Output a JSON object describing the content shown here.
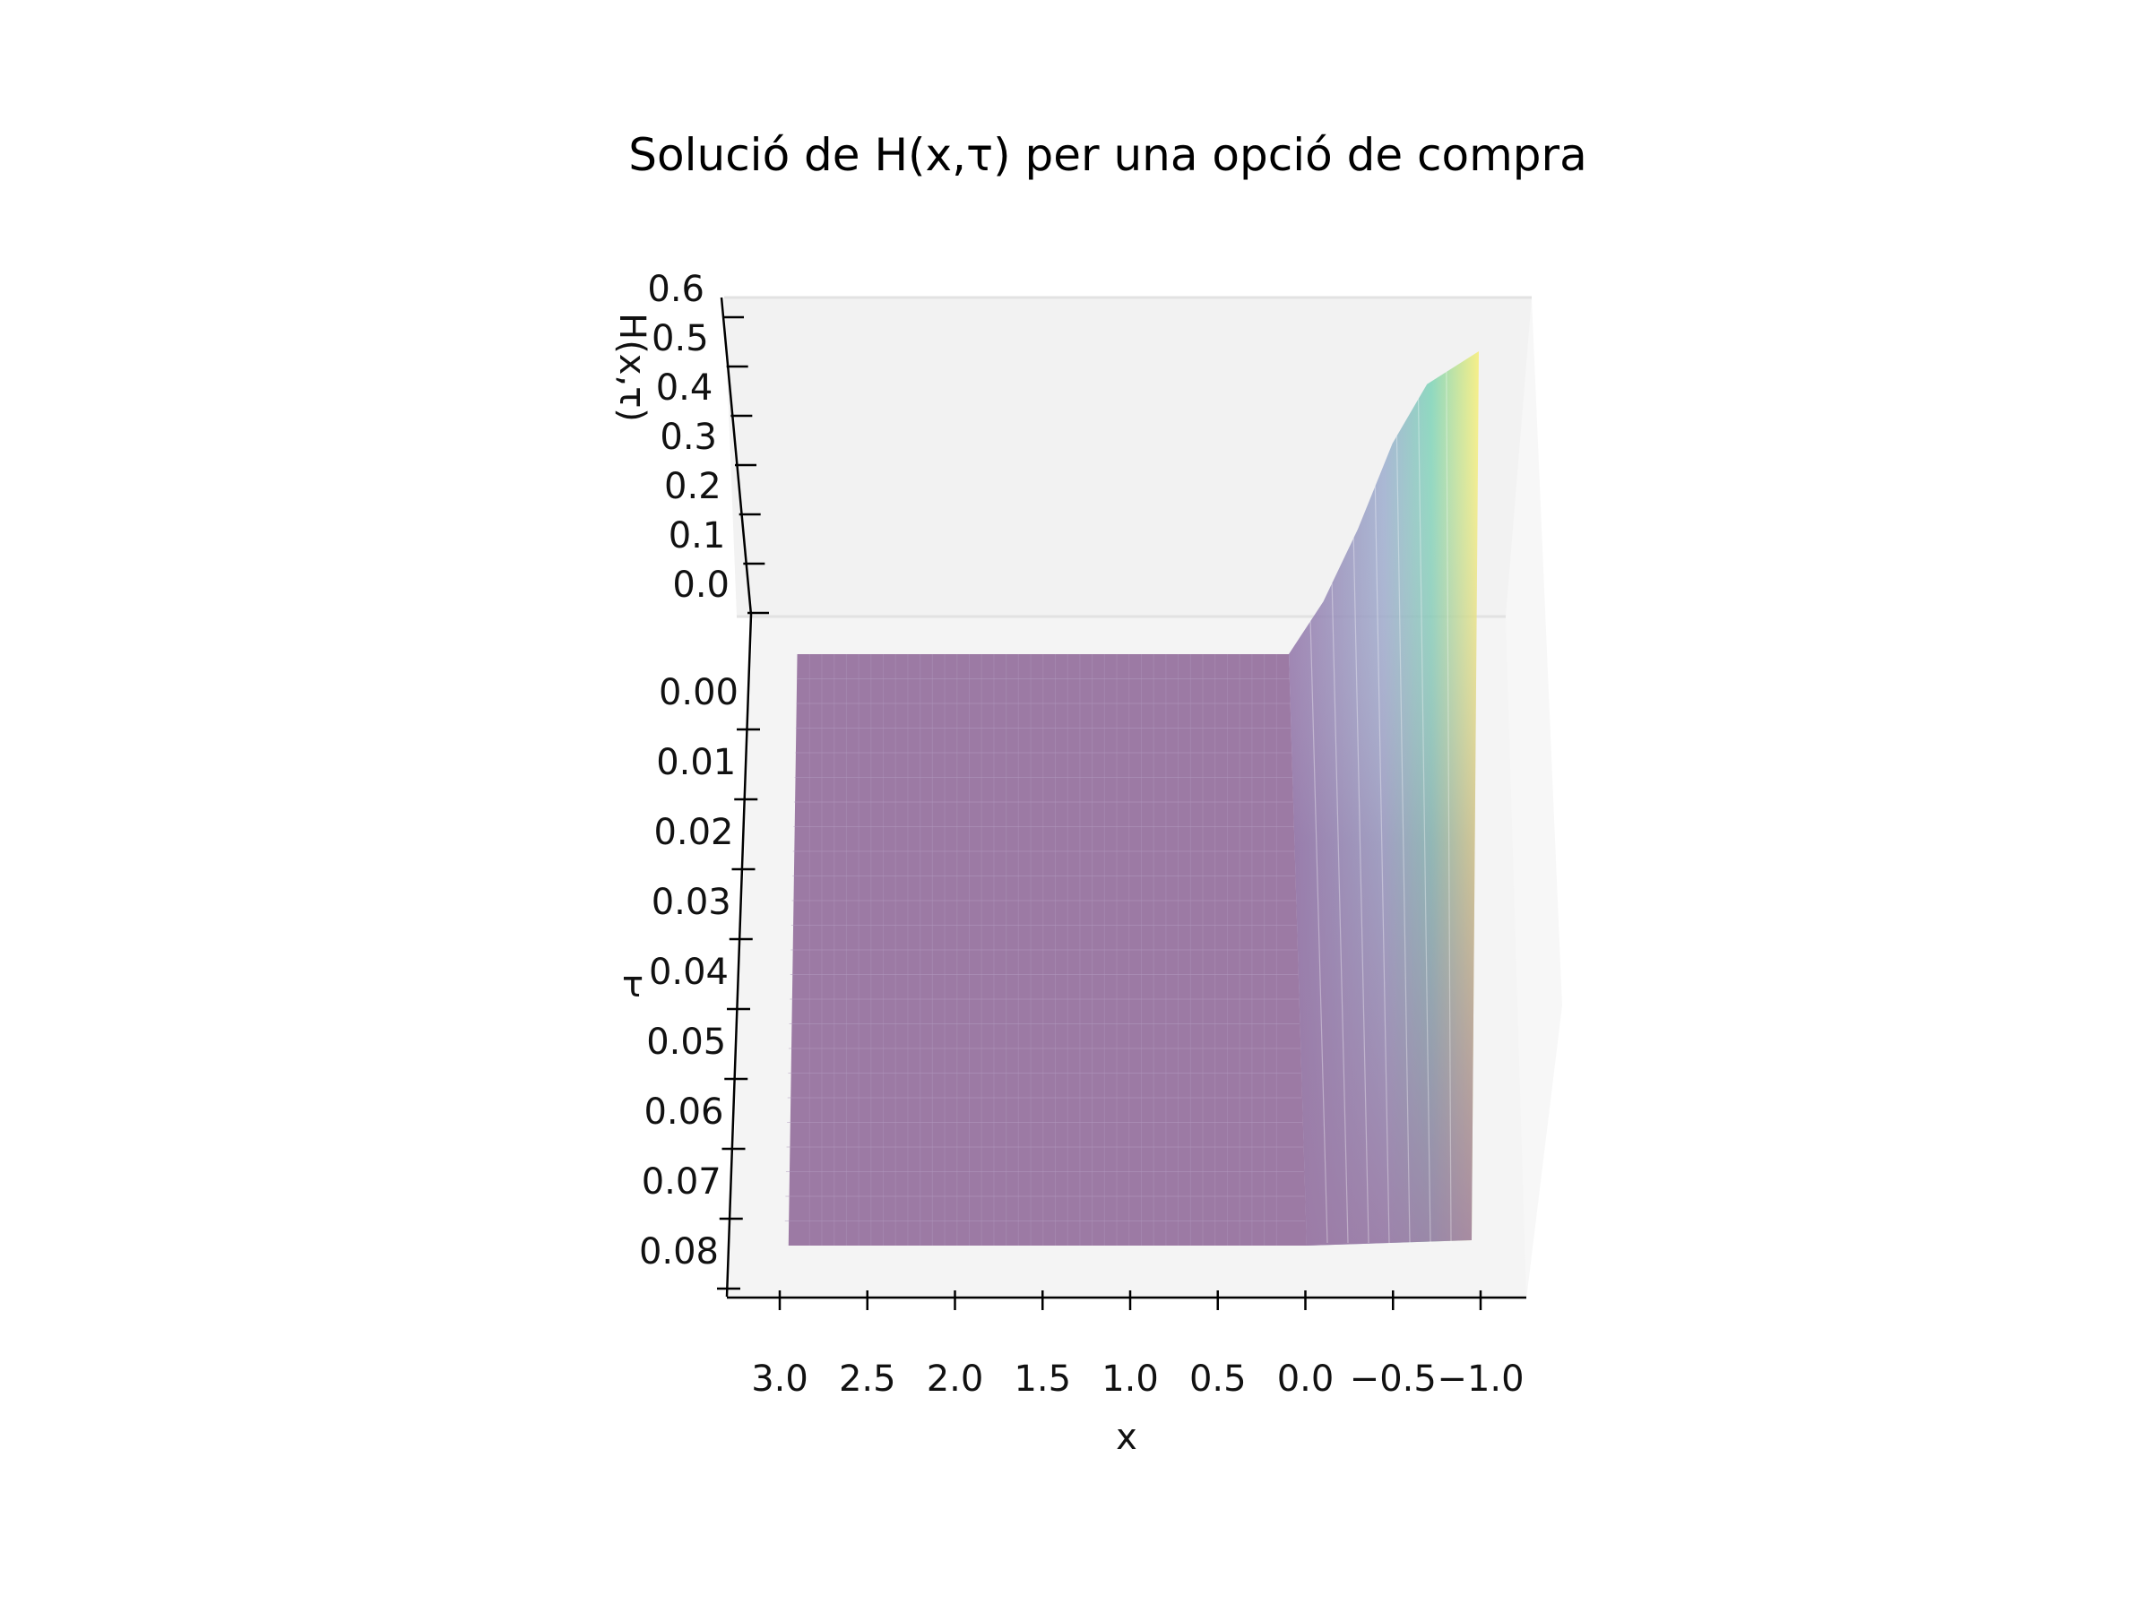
{
  "chart_data": {
    "type": "surface",
    "title": "Solució de H(x,τ) per una opció de compra",
    "xlabel": "x",
    "ylabel": "τ",
    "zlabel": "H(x,τ)",
    "x_ticks": [
      "3.0",
      "2.5",
      "2.0",
      "1.5",
      "1.0",
      "0.5",
      "0.0",
      "−0.5",
      "−1.0"
    ],
    "x_tick_values": [
      3.0,
      2.5,
      2.0,
      1.5,
      1.0,
      0.5,
      0.0,
      -0.5,
      -1.0
    ],
    "tau_ticks": [
      "0.00",
      "0.01",
      "0.02",
      "0.03",
      "0.04",
      "0.05",
      "0.06",
      "0.07",
      "0.08"
    ],
    "tau_tick_values": [
      0.0,
      0.01,
      0.02,
      0.03,
      0.04,
      0.05,
      0.06,
      0.07,
      0.08
    ],
    "z_ticks": [
      "0.0",
      "0.1",
      "0.2",
      "0.3",
      "0.4",
      "0.5",
      "0.6"
    ],
    "z_tick_values": [
      0.0,
      0.1,
      0.2,
      0.3,
      0.4,
      0.5,
      0.6
    ],
    "xlim": [
      3.2,
      -1.3
    ],
    "tau_lim": [
      0.0,
      0.08
    ],
    "zlim": [
      0.0,
      0.6
    ],
    "surface_x_range": [
      2.9,
      -1.0
    ],
    "surface_tau_range": [
      0.0,
      0.075
    ],
    "profile_tau0": {
      "x": [
        0.1,
        -0.1,
        -0.3,
        -0.5,
        -0.7,
        -1.0
      ],
      "H": [
        0.0,
        0.08,
        0.19,
        0.32,
        0.41,
        0.46
      ]
    },
    "colormap": "viridis",
    "colormap_stops": [
      "#440154",
      "#3b528b",
      "#21918c",
      "#5ec962",
      "#fde725"
    ],
    "surface_alpha": 0.5,
    "pane_color": "#f2f2f2"
  }
}
